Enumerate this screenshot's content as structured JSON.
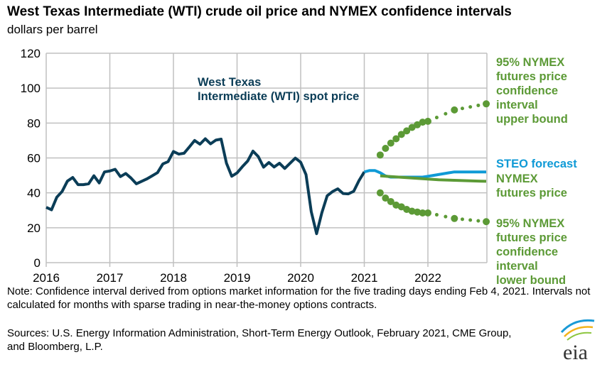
{
  "chart_data": {
    "type": "line",
    "title": "West Texas Intermediate (WTI) crude oil price and NYMEX confidence intervals",
    "subtitle": "dollars per barrel",
    "ylim": [
      0,
      120
    ],
    "yticks": [
      "0",
      "20",
      "40",
      "60",
      "80",
      "100",
      "120"
    ],
    "xticks": [
      "2016",
      "2017",
      "2018",
      "2019",
      "2020",
      "2021",
      "2022"
    ],
    "x_start": "2016-01",
    "grid": true,
    "series": [
      {
        "name": "West Texas Intermediate (WTI) spot price",
        "color": "#0b3d57",
        "start": "2016-01",
        "values": [
          31.7,
          30.3,
          37.5,
          40.8,
          46.7,
          48.8,
          44.7,
          44.7,
          45.2,
          49.8,
          45.7,
          52.0,
          52.5,
          53.5,
          49.3,
          51.1,
          48.5,
          45.2,
          46.6,
          48.0,
          49.8,
          51.6,
          56.6,
          57.9,
          63.7,
          62.2,
          62.7,
          66.3,
          70.0,
          67.9,
          71.0,
          68.1,
          70.2,
          70.8,
          57.0,
          49.5,
          51.4,
          55.0,
          58.2,
          63.9,
          60.8,
          54.7,
          57.4,
          54.8,
          57.0,
          54.0,
          57.0,
          59.9,
          57.5,
          50.5,
          29.2,
          16.6,
          28.6,
          38.3,
          40.7,
          42.3,
          39.6,
          39.4,
          40.9,
          47.0,
          52.0
        ]
      },
      {
        "name": "STEO forecast",
        "color": "#0f9ad6",
        "start": "2021-01",
        "values": [
          52.0,
          52.8,
          52.8,
          51.5,
          49.7,
          49.0,
          49.0,
          49.0,
          49.0,
          49.0,
          49.0,
          49.0,
          49.5,
          50.0,
          50.5,
          51.0,
          51.5,
          52.0,
          52.0,
          52.0,
          52.0,
          52.0,
          52.0,
          52.0
        ]
      },
      {
        "name": "NYMEX futures price",
        "color": "#5c9a36",
        "start": "2021-04",
        "values": [
          49.7,
          49.5,
          49.3,
          49.1,
          48.9,
          48.7,
          48.5,
          48.3,
          48.1,
          47.9,
          47.7,
          47.5,
          47.4,
          47.3,
          47.2,
          47.1,
          47.0,
          46.9,
          46.8,
          46.7,
          46.6
        ]
      },
      {
        "name": "95% NYMEX futures price confidence interval upper bound",
        "color": "#5c9a36",
        "points": [
          [
            "2021-04",
            61.7
          ],
          [
            "2021-05",
            65.5
          ],
          [
            "2021-06",
            68.5
          ],
          [
            "2021-07",
            71
          ],
          [
            "2021-08",
            73.5
          ],
          [
            "2021-09",
            75.5
          ],
          [
            "2021-10",
            77.5
          ],
          [
            "2021-11",
            79
          ],
          [
            "2021-12",
            80.5
          ],
          [
            "2022-01",
            81
          ],
          [
            "2022-06",
            87.5
          ],
          [
            "2022-12",
            91
          ]
        ]
      },
      {
        "name": "95% NYMEX futures price confidence interval lower bound",
        "color": "#5c9a36",
        "points": [
          [
            "2021-04",
            40
          ],
          [
            "2021-05",
            37
          ],
          [
            "2021-06",
            35
          ],
          [
            "2021-07",
            33
          ],
          [
            "2021-08",
            32
          ],
          [
            "2021-09",
            30.5
          ],
          [
            "2021-10",
            29.5
          ],
          [
            "2021-11",
            29
          ],
          [
            "2021-12",
            28.5
          ],
          [
            "2022-01",
            28.5
          ],
          [
            "2022-06",
            25.3
          ],
          [
            "2022-12",
            23.5
          ]
        ]
      }
    ],
    "annotations": {
      "wti": [
        "West Texas",
        "Intermediate (WTI) spot price"
      ],
      "upper": [
        "95% NYMEX",
        "futures price",
        "confidence",
        "interval",
        "upper bound"
      ],
      "steo": "STEO forecast",
      "nymex": [
        "NYMEX",
        "futures price"
      ],
      "lower": [
        "95% NYMEX",
        "futures price",
        "confidence",
        "interval",
        "lower bound"
      ]
    }
  },
  "note": "Note: Confidence interval derived from options market information for the five trading days ending Feb 4, 2021. Intervals not calculated for months with sparse trading in near-the-money options contracts.",
  "sources": "Sources: U.S. Energy Information Administration, Short-Term Energy Outlook, February 2021, CME Group, and Bloomberg, L.P.",
  "logo": "eia"
}
